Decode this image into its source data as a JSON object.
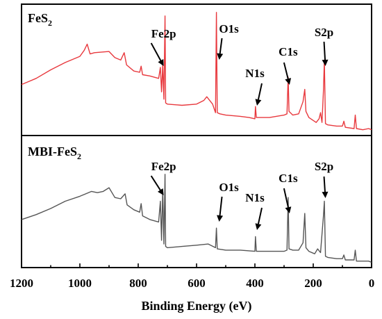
{
  "chart_data": {
    "type": "line",
    "xlabel": "Binding Energy (eV)",
    "xlim": [
      1200,
      0
    ],
    "x_reversed": true,
    "xticks": [
      "1200",
      "1000",
      "800",
      "600",
      "400",
      "200",
      "0"
    ],
    "xtick_values": [
      1200,
      1000,
      800,
      600,
      400,
      200,
      0
    ],
    "ylabel": "",
    "yticks_visible": false,
    "layout": "two stacked panels sharing x axis",
    "panels": [
      {
        "title_main": "FeS",
        "title_sub": "2",
        "series_name": "FeS2",
        "color": "#e8383d",
        "ylim": [
          0,
          100
        ],
        "points": [
          [
            1200,
            40
          ],
          [
            1180,
            42
          ],
          [
            1150,
            45
          ],
          [
            1100,
            52
          ],
          [
            1050,
            58
          ],
          [
            1000,
            63
          ],
          [
            985,
            68
          ],
          [
            975,
            73
          ],
          [
            965,
            65
          ],
          [
            950,
            66
          ],
          [
            900,
            67
          ],
          [
            880,
            62
          ],
          [
            860,
            60
          ],
          [
            848,
            66
          ],
          [
            840,
            56
          ],
          [
            815,
            51
          ],
          [
            795,
            50
          ],
          [
            790,
            55
          ],
          [
            785,
            48
          ],
          [
            760,
            47
          ],
          [
            730,
            45
          ],
          [
            724,
            54
          ],
          [
            720,
            34
          ],
          [
            716,
            56
          ],
          [
            712,
            28
          ],
          [
            708,
            96
          ],
          [
            706,
            25
          ],
          [
            700,
            24
          ],
          [
            650,
            23
          ],
          [
            600,
            24
          ],
          [
            575,
            27
          ],
          [
            565,
            30
          ],
          [
            545,
            24
          ],
          [
            535,
            17
          ],
          [
            532,
            99
          ],
          [
            529,
            17
          ],
          [
            520,
            16
          ],
          [
            500,
            15
          ],
          [
            450,
            14
          ],
          [
            420,
            13
          ],
          [
            400,
            12
          ],
          [
            398,
            22
          ],
          [
            395,
            13
          ],
          [
            350,
            13
          ],
          [
            300,
            15
          ],
          [
            290,
            16
          ],
          [
            286,
            46
          ],
          [
            283,
            18
          ],
          [
            270,
            15
          ],
          [
            250,
            16
          ],
          [
            235,
            26
          ],
          [
            229,
            36
          ],
          [
            225,
            18
          ],
          [
            215,
            13
          ],
          [
            190,
            9
          ],
          [
            180,
            12
          ],
          [
            175,
            17
          ],
          [
            170,
            9
          ],
          [
            165,
            35
          ],
          [
            162,
            60
          ],
          [
            158,
            8
          ],
          [
            150,
            7
          ],
          [
            120,
            6
          ],
          [
            100,
            6
          ],
          [
            95,
            10
          ],
          [
            90,
            5
          ],
          [
            60,
            4
          ],
          [
            56,
            15
          ],
          [
            52,
            4
          ],
          [
            30,
            3
          ],
          [
            10,
            4
          ],
          [
            0,
            3
          ]
        ],
        "peaks": [
          {
            "label": "Fe2p",
            "x": 708
          },
          {
            "label": "O1s",
            "x": 532
          },
          {
            "label": "N1s",
            "x": 400
          },
          {
            "label": "C1s",
            "x": 286
          },
          {
            "label": "S2p",
            "x": 163
          }
        ]
      },
      {
        "title_main": "MBI-FeS",
        "title_sub": "2",
        "series_name": "MBI-FeS2",
        "color": "#555555",
        "ylim": [
          0,
          100
        ],
        "points": [
          [
            1200,
            37
          ],
          [
            1150,
            41
          ],
          [
            1100,
            46
          ],
          [
            1050,
            52
          ],
          [
            1000,
            56
          ],
          [
            960,
            60
          ],
          [
            940,
            59
          ],
          [
            920,
            60
          ],
          [
            900,
            63
          ],
          [
            880,
            55
          ],
          [
            860,
            54
          ],
          [
            845,
            58
          ],
          [
            838,
            49
          ],
          [
            815,
            45
          ],
          [
            795,
            43
          ],
          [
            790,
            50
          ],
          [
            785,
            40
          ],
          [
            760,
            37
          ],
          [
            730,
            35
          ],
          [
            724,
            52
          ],
          [
            720,
            20
          ],
          [
            716,
            61
          ],
          [
            712,
            17
          ],
          [
            708,
            74
          ],
          [
            706,
            15
          ],
          [
            700,
            14
          ],
          [
            650,
            15
          ],
          [
            600,
            16
          ],
          [
            560,
            17
          ],
          [
            535,
            14
          ],
          [
            532,
            30
          ],
          [
            529,
            13
          ],
          [
            500,
            12
          ],
          [
            450,
            12
          ],
          [
            400,
            11
          ],
          [
            398,
            23
          ],
          [
            395,
            11
          ],
          [
            350,
            11
          ],
          [
            300,
            11
          ],
          [
            290,
            12
          ],
          [
            286,
            55
          ],
          [
            283,
            13
          ],
          [
            270,
            12
          ],
          [
            250,
            12
          ],
          [
            235,
            18
          ],
          [
            229,
            42
          ],
          [
            225,
            14
          ],
          [
            215,
            11
          ],
          [
            195,
            9
          ],
          [
            185,
            13
          ],
          [
            175,
            10
          ],
          [
            165,
            40
          ],
          [
            162,
            52
          ],
          [
            158,
            7
          ],
          [
            150,
            6
          ],
          [
            120,
            5
          ],
          [
            100,
            5
          ],
          [
            95,
            8
          ],
          [
            90,
            4
          ],
          [
            60,
            4
          ],
          [
            56,
            12
          ],
          [
            52,
            3
          ],
          [
            30,
            3
          ],
          [
            10,
            3
          ],
          [
            0,
            2
          ]
        ],
        "peaks": [
          {
            "label": "Fe2p",
            "x": 708
          },
          {
            "label": "O1s",
            "x": 532
          },
          {
            "label": "N1s",
            "x": 400
          },
          {
            "label": "C1s",
            "x": 286
          },
          {
            "label": "S2p",
            "x": 163
          }
        ]
      }
    ]
  }
}
